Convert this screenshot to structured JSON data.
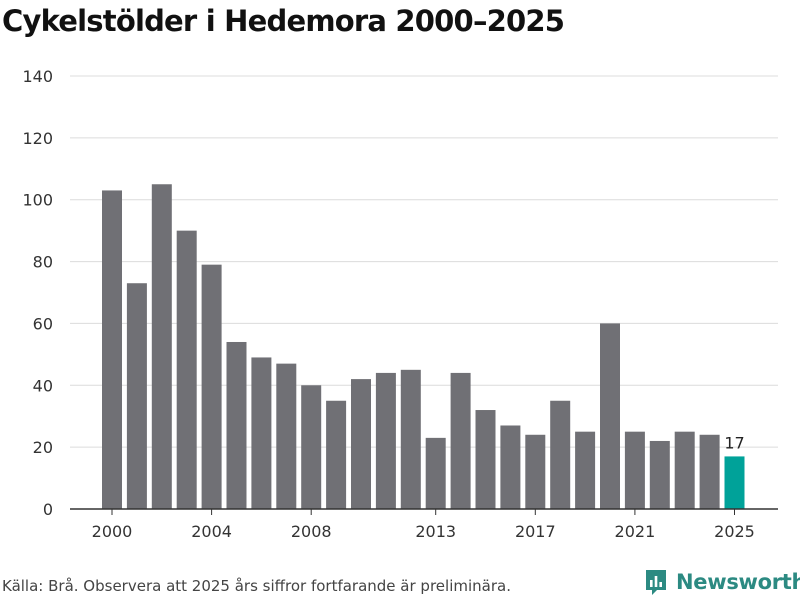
{
  "chart_data": {
    "type": "bar",
    "title": "Cykelstölder i Hedemora 2000–2025",
    "categories": [
      "2000",
      "2001",
      "2002",
      "2003",
      "2004",
      "2005",
      "2006",
      "2007",
      "2008",
      "2009",
      "2010",
      "2011",
      "2012",
      "2013",
      "2014",
      "2015",
      "2016",
      "2017",
      "2018",
      "2019",
      "2020",
      "2021",
      "2022",
      "2023",
      "2024",
      "2025"
    ],
    "values": [
      103,
      73,
      105,
      90,
      79,
      54,
      49,
      47,
      40,
      35,
      42,
      44,
      45,
      23,
      44,
      32,
      27,
      24,
      35,
      25,
      60,
      25,
      22,
      25,
      24,
      17
    ],
    "x_tick_labels": [
      "2000",
      "2004",
      "2008",
      "2013",
      "2017",
      "2021",
      "2025"
    ],
    "y_ticks": [
      0,
      20,
      40,
      60,
      80,
      100,
      120,
      140
    ],
    "ylim": [
      0,
      140
    ],
    "grid": true,
    "highlight": {
      "category": "2025",
      "label": "17"
    },
    "colors": {
      "bar": "#707075",
      "highlight": "#00a299",
      "grid": "#dcdcdc",
      "axis": "#333333"
    }
  },
  "footer": {
    "source": "Källa: Brå. Observera att 2025 års siffror fortfarande är preliminära.",
    "brand": "Newsworthy"
  }
}
